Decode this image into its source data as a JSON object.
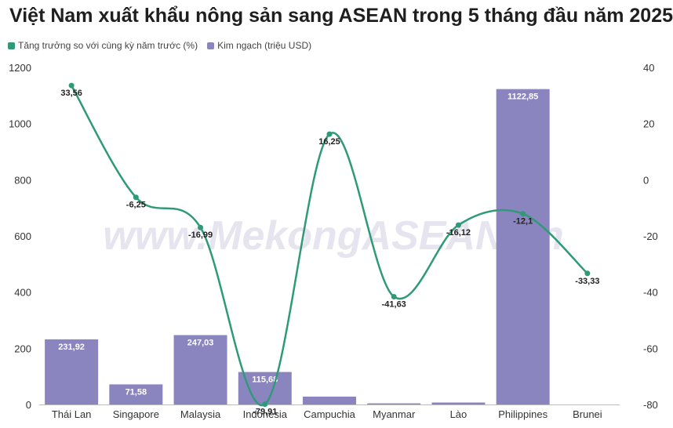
{
  "chart_data": {
    "type": "bar",
    "title": "Việt Nam xuất khẩu nông sản sang ASEAN trong 5 tháng đầu năm 2025",
    "categories": [
      "Thái Lan",
      "Singapore",
      "Malaysia",
      "Indonesia",
      "Campuchia",
      "Myanmar",
      "Lào",
      "Philippines",
      "Brunei"
    ],
    "series": [
      {
        "name": "Kim ngạch (triệu USD)",
        "type": "bar",
        "axis": "left",
        "color": "#8b85bf",
        "values": [
          231.92,
          71.58,
          247.03,
          115.68,
          28,
          4,
          7,
          1122.85,
          0
        ],
        "labels": [
          "231,92",
          "71,58",
          "247,03",
          "115,68",
          "",
          "",
          "",
          "1122,85",
          ""
        ]
      },
      {
        "name": "Tăng trưởng so với cùng kỳ năm trước (%)",
        "type": "line",
        "axis": "right",
        "color": "#2e9a78",
        "values": [
          33.56,
          -6.25,
          -16.99,
          -79.91,
          16.25,
          -41.63,
          -16.12,
          -12.1,
          -33.33
        ],
        "labels": [
          "33,56",
          "-6,25",
          "-16,99",
          "-79,91",
          "16,25",
          "-41,63",
          "-16,12",
          "-12,1",
          "-33,33"
        ]
      }
    ],
    "y_left": {
      "min": 0,
      "max": 1200,
      "ticks": [
        0,
        200,
        400,
        600,
        800,
        1000,
        1200
      ]
    },
    "y_right": {
      "min": -80,
      "max": 40,
      "ticks": [
        -80,
        -60,
        -40,
        -20,
        0,
        20,
        40
      ]
    },
    "grid": false,
    "legend_position": "top-left",
    "watermark": "www.MekongASEAN.vn"
  }
}
